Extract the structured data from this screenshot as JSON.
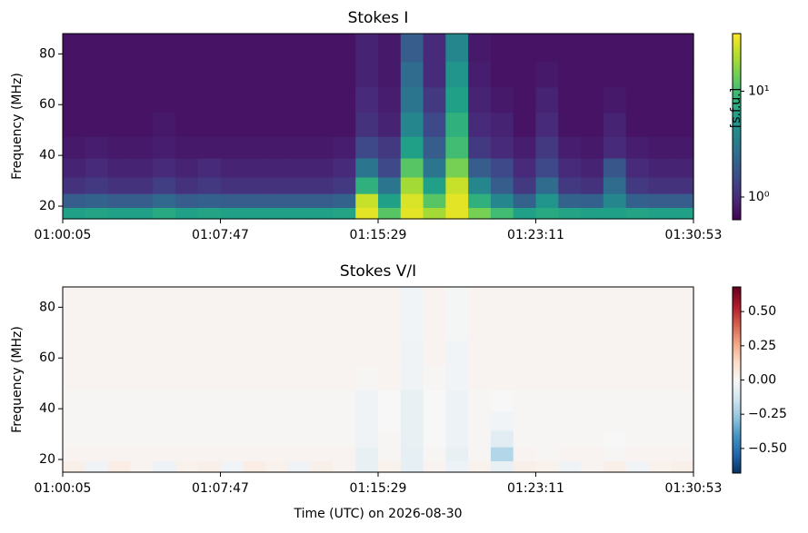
{
  "chart_data": [
    {
      "type": "heatmap",
      "title": "Stokes I",
      "ylabel": "Frequency (MHz)",
      "colorbar_label": "[s.f.u.]",
      "colormap": "viridis",
      "color_log": true,
      "clim": [
        0.61,
        35
      ],
      "cticks": [
        {
          "value": 1,
          "label": "10⁰"
        },
        {
          "value": 10,
          "label": "10¹"
        }
      ],
      "xlim": [
        "01:00:05",
        "01:30:53"
      ],
      "xticks": [
        "01:00:05",
        "01:07:47",
        "01:15:29",
        "01:23:11",
        "01:30:53"
      ],
      "ylim": [
        15,
        88
      ],
      "yticks": [
        20,
        40,
        60,
        80
      ],
      "x": [
        "01:00:38",
        "01:01:44",
        "01:02:50",
        "01:03:56",
        "01:05:02",
        "01:06:08",
        "01:07:14",
        "01:08:20",
        "01:09:26",
        "01:10:32",
        "01:11:38",
        "01:12:44",
        "01:13:50",
        "01:14:56",
        "01:16:02",
        "01:17:08",
        "01:18:14",
        "01:19:20",
        "01:20:26",
        "01:21:32",
        "01:22:38",
        "01:23:44",
        "01:24:50",
        "01:25:56",
        "01:27:02",
        "01:28:08",
        "01:29:14",
        "01:30:20"
      ],
      "y": [
        17,
        22,
        28,
        35,
        43,
        52,
        62,
        72,
        82
      ],
      "values": [
        [
          6,
          6.5,
          6,
          6,
          7,
          6,
          6.5,
          6,
          6,
          6,
          6,
          6,
          6.5,
          30,
          12,
          30,
          20,
          30,
          15,
          10,
          6,
          7,
          6.5,
          6,
          6,
          6.5,
          6,
          6
        ],
        [
          2,
          2.2,
          2,
          2,
          2.4,
          2,
          2.1,
          2,
          2,
          2,
          2,
          2,
          2.2,
          25,
          6,
          28,
          12,
          30,
          8,
          4,
          2.2,
          5,
          2.2,
          2.1,
          4,
          2.1,
          2,
          2
        ],
        [
          1.1,
          1.2,
          1.1,
          1.1,
          1.3,
          1.1,
          1.2,
          1.1,
          1.1,
          1.1,
          1.1,
          1.1,
          1.2,
          8,
          3,
          20,
          6,
          25,
          4,
          2,
          1.2,
          2.5,
          1.2,
          1.1,
          2.5,
          1.2,
          1.1,
          1.1
        ],
        [
          0.9,
          1,
          0.9,
          0.9,
          1,
          0.9,
          1,
          0.9,
          0.9,
          0.9,
          0.9,
          0.9,
          1,
          3,
          1.5,
          12,
          3,
          15,
          2,
          1.5,
          1,
          1.5,
          1,
          0.9,
          1.8,
          1,
          0.9,
          0.9
        ],
        [
          0.8,
          0.85,
          0.8,
          0.8,
          0.85,
          0.8,
          0.8,
          0.8,
          0.8,
          0.8,
          0.8,
          0.8,
          0.85,
          1.5,
          1.2,
          6,
          2,
          10,
          1.2,
          1,
          0.85,
          1.2,
          0.85,
          0.8,
          1,
          0.85,
          0.8,
          0.8
        ],
        [
          0.75,
          0.75,
          0.75,
          0.75,
          0.8,
          0.75,
          0.75,
          0.75,
          0.75,
          0.75,
          0.75,
          0.75,
          0.75,
          1.1,
          0.9,
          4,
          1.5,
          8,
          1,
          0.9,
          0.75,
          1,
          0.75,
          0.75,
          0.9,
          0.75,
          0.75,
          0.75
        ],
        [
          0.75,
          0.75,
          0.75,
          0.75,
          0.75,
          0.75,
          0.75,
          0.75,
          0.75,
          0.75,
          0.75,
          0.75,
          0.75,
          1,
          0.85,
          3,
          1.2,
          6,
          0.9,
          0.8,
          0.75,
          0.9,
          0.75,
          0.75,
          0.8,
          0.75,
          0.75,
          0.75
        ],
        [
          0.75,
          0.75,
          0.75,
          0.75,
          0.75,
          0.75,
          0.75,
          0.75,
          0.75,
          0.75,
          0.75,
          0.75,
          0.75,
          0.9,
          0.8,
          2.5,
          1,
          5,
          0.85,
          0.75,
          0.75,
          0.8,
          0.75,
          0.75,
          0.75,
          0.75,
          0.75,
          0.75
        ],
        [
          0.75,
          0.75,
          0.75,
          0.75,
          0.75,
          0.75,
          0.75,
          0.75,
          0.75,
          0.75,
          0.75,
          0.75,
          0.75,
          0.9,
          0.8,
          2,
          1,
          4,
          0.8,
          0.75,
          0.75,
          0.75,
          0.75,
          0.75,
          0.75,
          0.75,
          0.75,
          0.75
        ]
      ]
    },
    {
      "type": "heatmap",
      "title": "Stokes V/I",
      "ylabel": "Frequency (MHz)",
      "xlabel": "Time (UTC) on 2026-08-30",
      "colormap": "RdBu_r",
      "color_log": false,
      "clim": [
        -0.68,
        0.68
      ],
      "cticks": [
        {
          "value": 0.5,
          "label": "0.50"
        },
        {
          "value": 0.25,
          "label": "0.25"
        },
        {
          "value": 0,
          "label": "0.00"
        },
        {
          "value": -0.25,
          "label": "−0.25"
        },
        {
          "value": -0.5,
          "label": "−0.50"
        }
      ],
      "xlim": [
        "01:00:05",
        "01:30:53"
      ],
      "xticks": [
        "01:00:05",
        "01:07:47",
        "01:15:29",
        "01:23:11",
        "01:30:53"
      ],
      "ylim": [
        15,
        88
      ],
      "yticks": [
        20,
        40,
        60,
        80
      ],
      "x": [
        "01:00:38",
        "01:01:44",
        "01:02:50",
        "01:03:56",
        "01:05:02",
        "01:06:08",
        "01:07:14",
        "01:08:20",
        "01:09:26",
        "01:10:32",
        "01:11:38",
        "01:12:44",
        "01:13:50",
        "01:14:56",
        "01:16:02",
        "01:17:08",
        "01:18:14",
        "01:19:20",
        "01:20:26",
        "01:21:32",
        "01:22:38",
        "01:23:44",
        "01:24:50",
        "01:25:56",
        "01:27:02",
        "01:28:08",
        "01:29:14",
        "01:30:20"
      ],
      "y": [
        17,
        22,
        28,
        35,
        43,
        52,
        62,
        72,
        82
      ],
      "values": [
        [
          0.04,
          -0.03,
          0.05,
          0.02,
          -0.04,
          0.03,
          0.04,
          -0.02,
          0.05,
          0.03,
          -0.03,
          0.04,
          0.02,
          -0.05,
          0.03,
          -0.06,
          0.02,
          -0.04,
          0.03,
          -0.05,
          0.04,
          0.03,
          -0.03,
          0.02,
          0.04,
          -0.02,
          0.03,
          0.04
        ],
        [
          0.02,
          0.02,
          0.02,
          0.02,
          0.02,
          0.02,
          0.02,
          0.02,
          0.02,
          0.02,
          0.02,
          0.02,
          0.02,
          -0.05,
          0.01,
          -0.06,
          0.01,
          -0.05,
          0.01,
          -0.2,
          0.02,
          0.01,
          0.02,
          0.02,
          0.01,
          0.02,
          0.02,
          0.02
        ],
        [
          0.01,
          0.01,
          0.01,
          0.01,
          0.01,
          0.01,
          0.01,
          0.01,
          0.01,
          0.01,
          0.01,
          0.01,
          0.01,
          -0.03,
          0.01,
          -0.05,
          0,
          -0.04,
          0.01,
          -0.08,
          0.01,
          0.01,
          0.01,
          0.01,
          0,
          0.01,
          0.01,
          0.01
        ],
        [
          0.01,
          0.01,
          0.01,
          0.01,
          0.01,
          0.01,
          0.01,
          0.01,
          0.01,
          0.01,
          0.01,
          0.01,
          0.01,
          -0.03,
          0,
          -0.05,
          0,
          -0.04,
          0.01,
          -0.02,
          0.01,
          0.01,
          0.01,
          0.01,
          0.01,
          0.01,
          0.01,
          0.01
        ],
        [
          0.01,
          0.01,
          0.01,
          0.01,
          0.01,
          0.01,
          0.01,
          0.01,
          0.01,
          0.01,
          0.01,
          0.01,
          0.01,
          -0.03,
          0,
          -0.05,
          0,
          -0.04,
          0.01,
          0,
          0.01,
          0.01,
          0.01,
          0.01,
          0.01,
          0.01,
          0.01,
          0.01
        ],
        [
          0.02,
          0.02,
          0.02,
          0.02,
          0.02,
          0.02,
          0.02,
          0.02,
          0.02,
          0.02,
          0.02,
          0.02,
          0.02,
          0.01,
          0.02,
          -0.03,
          0.01,
          -0.02,
          0.02,
          0.02,
          0.02,
          0.02,
          0.02,
          0.02,
          0.02,
          0.02,
          0.02,
          0.02
        ],
        [
          0.02,
          0.02,
          0.02,
          0.02,
          0.02,
          0.02,
          0.02,
          0.02,
          0.02,
          0.02,
          0.02,
          0.02,
          0.02,
          0.02,
          0.02,
          -0.03,
          0.02,
          -0.02,
          0.02,
          0.02,
          0.02,
          0.02,
          0.02,
          0.02,
          0.02,
          0.02,
          0.02,
          0.02
        ],
        [
          0.02,
          0.02,
          0.02,
          0.02,
          0.02,
          0.02,
          0.02,
          0.02,
          0.02,
          0.02,
          0.02,
          0.02,
          0.02,
          0.02,
          0.02,
          -0.02,
          0.02,
          -0.01,
          0.02,
          0.02,
          0.02,
          0.02,
          0.02,
          0.02,
          0.02,
          0.02,
          0.02,
          0.02
        ],
        [
          0.02,
          0.02,
          0.02,
          0.02,
          0.02,
          0.02,
          0.02,
          0.02,
          0.02,
          0.02,
          0.02,
          0.02,
          0.02,
          0.02,
          0.02,
          -0.02,
          0.02,
          -0.01,
          0.02,
          0.02,
          0.02,
          0.02,
          0.02,
          0.02,
          0.02,
          0.02,
          0.02,
          0.02
        ]
      ]
    }
  ]
}
